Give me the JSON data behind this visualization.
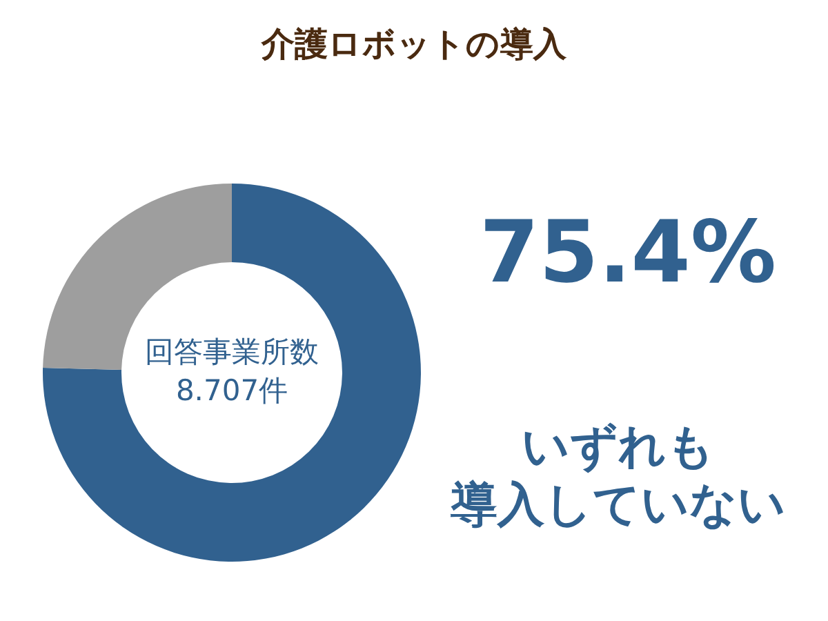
{
  "chart_data": {
    "type": "donut",
    "title": "介護ロボットの導入",
    "categories": [
      "いずれも導入していない",
      null
    ],
    "values": [
      75.4,
      24.6
    ],
    "colors": [
      "#31618f",
      "#9e9e9e"
    ],
    "value_labels": [
      "75.4%",
      null
    ],
    "annotations": [
      "回答事業所数",
      "8.707件"
    ]
  }
}
